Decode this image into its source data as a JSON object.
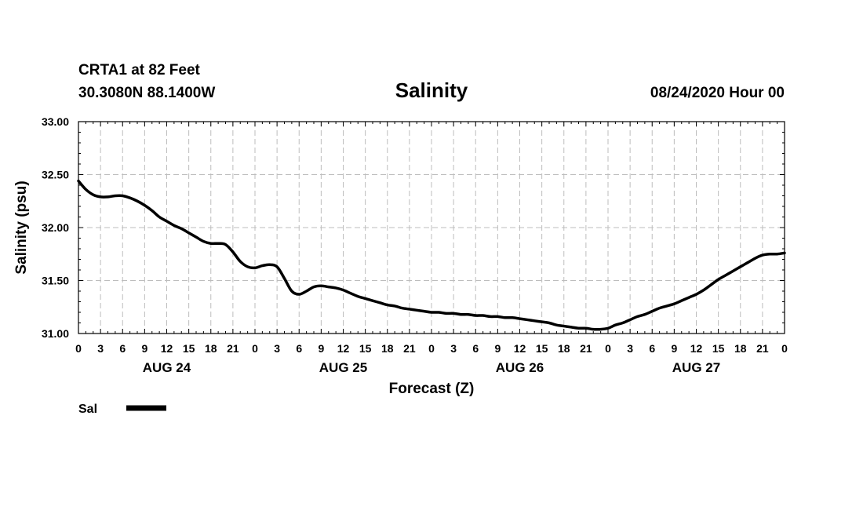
{
  "header": {
    "station": "CRTA1 at 82 Feet",
    "coords": "30.3080N 88.1400W",
    "title": "Salinity",
    "run": "08/24/2020 Hour 00"
  },
  "chart_data": {
    "type": "line",
    "title": "Salinity",
    "xlabel": "Forecast (Z)",
    "ylabel": "Salinity (psu)",
    "ylim": [
      31.0,
      33.0
    ],
    "xlim": [
      0,
      96
    ],
    "yticks": [
      "31.00",
      "31.50",
      "32.00",
      "32.50",
      "33.00"
    ],
    "xtick_step_hours": 3,
    "xtick_labels": [
      "0",
      "3",
      "6",
      "9",
      "12",
      "15",
      "18",
      "21",
      "0",
      "3",
      "6",
      "9",
      "12",
      "15",
      "18",
      "21",
      "0",
      "3",
      "6",
      "9",
      "12",
      "15",
      "18",
      "21",
      "0",
      "3",
      "6",
      "9",
      "12",
      "15",
      "18",
      "21",
      "0"
    ],
    "day_labels": [
      {
        "label": "AUG 24",
        "hour": 12
      },
      {
        "label": "AUG 25",
        "hour": 36
      },
      {
        "label": "AUG 26",
        "hour": 60
      },
      {
        "label": "AUG 27",
        "hour": 84
      }
    ],
    "grid": true,
    "legend_position": "bottom-left",
    "series": [
      {
        "name": "Sal",
        "color": "#000000",
        "x": [
          0,
          1,
          2,
          3,
          4,
          5,
          6,
          7,
          8,
          9,
          10,
          11,
          12,
          13,
          14,
          15,
          16,
          17,
          18,
          19,
          20,
          21,
          22,
          23,
          24,
          25,
          26,
          27,
          28,
          29,
          30,
          31,
          32,
          33,
          34,
          35,
          36,
          37,
          38,
          39,
          40,
          41,
          42,
          43,
          44,
          45,
          46,
          47,
          48,
          49,
          50,
          51,
          52,
          53,
          54,
          55,
          56,
          57,
          58,
          59,
          60,
          61,
          62,
          63,
          64,
          65,
          66,
          67,
          68,
          69,
          70,
          71,
          72,
          73,
          74,
          75,
          76,
          77,
          78,
          79,
          80,
          81,
          82,
          83,
          84,
          85,
          86,
          87,
          88,
          89,
          90,
          91,
          92,
          93,
          94,
          95,
          96
        ],
        "y": [
          32.44,
          32.36,
          32.31,
          32.29,
          32.29,
          32.3,
          32.3,
          32.28,
          32.25,
          32.21,
          32.16,
          32.1,
          32.06,
          32.02,
          31.99,
          31.95,
          31.91,
          31.87,
          31.85,
          31.85,
          31.84,
          31.77,
          31.68,
          31.63,
          31.62,
          31.64,
          31.65,
          31.63,
          31.52,
          31.4,
          31.37,
          31.4,
          31.44,
          31.45,
          31.44,
          31.43,
          31.41,
          31.38,
          31.35,
          31.33,
          31.31,
          31.29,
          31.27,
          31.26,
          31.24,
          31.23,
          31.22,
          31.21,
          31.2,
          31.2,
          31.19,
          31.19,
          31.18,
          31.18,
          31.17,
          31.17,
          31.16,
          31.16,
          31.15,
          31.15,
          31.14,
          31.13,
          31.12,
          31.11,
          31.1,
          31.08,
          31.07,
          31.06,
          31.05,
          31.05,
          31.04,
          31.04,
          31.05,
          31.08,
          31.1,
          31.13,
          31.16,
          31.18,
          31.21,
          31.24,
          31.26,
          31.28,
          31.31,
          31.34,
          31.37,
          31.41,
          31.46,
          31.51,
          31.55,
          31.59,
          31.63,
          31.67,
          31.71,
          31.74,
          31.75,
          31.75,
          31.76
        ]
      }
    ]
  }
}
